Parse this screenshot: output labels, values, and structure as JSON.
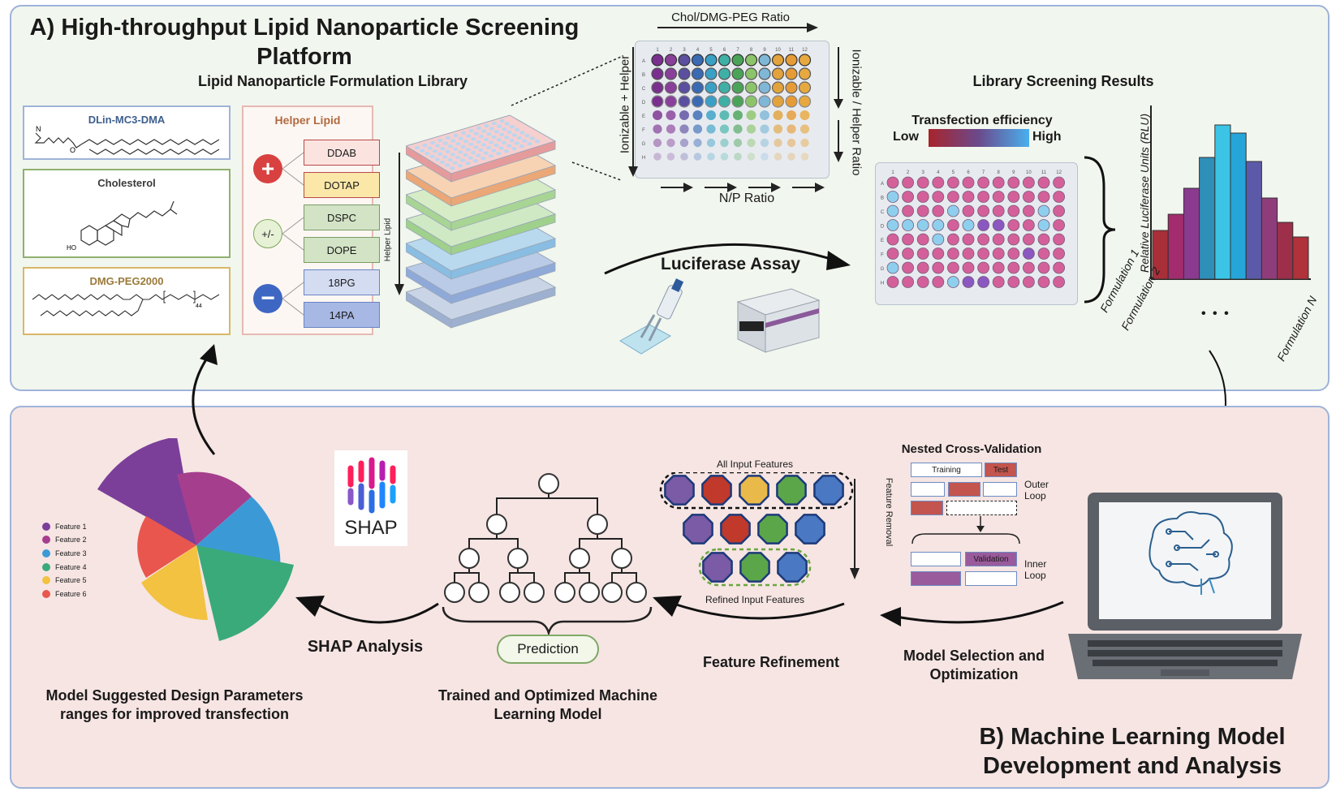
{
  "panel_a": {
    "title": "A) High-throughput Lipid Nanoparticle Screening Platform",
    "library_title": "Lipid Nanoparticle Formulation Library",
    "lipids": [
      {
        "name": "DLin-MC3-DMA",
        "color": "#3d5f8e"
      },
      {
        "name": "Cholesterol",
        "color": "#3b3b3b"
      },
      {
        "name": "DMG-PEG2000",
        "color": "#9a7a3a"
      }
    ],
    "peg_subscript": "44",
    "helper": {
      "title": "Helper Lipid",
      "groups": [
        {
          "sign": "+",
          "items": [
            "DDAB",
            "DOTAP"
          ]
        },
        {
          "sign": "+/-",
          "items": [
            "DSPC",
            "DOPE"
          ]
        },
        {
          "sign": "−",
          "items": [
            "18PG",
            "14PA"
          ]
        }
      ]
    },
    "helper_axis": "Helper Lipid",
    "plate_axes": {
      "top": "Chol/DMG-PEG Ratio",
      "left": "Ionizable + Helper",
      "right": "Ionizable / Helper Ratio",
      "bottom": "N/P Ratio"
    },
    "plate_rows": [
      "A",
      "B",
      "C",
      "D",
      "E",
      "F",
      "G",
      "H"
    ],
    "plate_cols": [
      "1",
      "2",
      "3",
      "4",
      "5",
      "6",
      "7",
      "8",
      "9",
      "10",
      "11",
      "12"
    ],
    "assay_label": "Luciferase Assay",
    "results_title": "Library Screening Results",
    "gradient": {
      "title": "Transfection efficiency",
      "low": "Low",
      "high": "High"
    },
    "bar_chart": {
      "ylabel": "Relative Luciferase Units (RLU)",
      "xlabels": [
        "Formulation 1",
        "Formulation 2",
        "Formulation N"
      ],
      "ellipsis": "• • •"
    }
  },
  "panel_b": {
    "title": "B) Machine Learning Model Development and Analysis",
    "cv_title": "Nested Cross-Validation",
    "training": "Training",
    "test": "Test",
    "outer_loop": "Outer Loop",
    "validation": "Validation",
    "inner_loop": "Inner Loop",
    "model_selection": "Model Selection and Optimization",
    "all_features": "All Input Features",
    "feature_removal": "Feature Removal",
    "refined_features": "Refined Input Features",
    "feature_refinement": "Feature Refinement",
    "prediction": "Prediction",
    "trained_model": "Trained and Optimized Machine Learning Model",
    "shap_logo": "SHAP",
    "shap_analysis": "SHAP Analysis",
    "model_suggested": "Model Suggested Design Parameters ranges for improved transfection",
    "features_legend": [
      {
        "label": "Feature 1",
        "color": "#7b3f9a"
      },
      {
        "label": "Feature 2",
        "color": "#a63e8e"
      },
      {
        "label": "Feature 3",
        "color": "#3b9ad6"
      },
      {
        "label": "Feature 4",
        "color": "#3aaa7a"
      },
      {
        "label": "Feature 5",
        "color": "#f2c240"
      },
      {
        "label": "Feature 6",
        "color": "#e8564e"
      }
    ]
  },
  "colors": {
    "panel_a_bg": "#f1f6ee",
    "panel_b_bg": "#f6e5e3",
    "panel_border": "#9fb3d9",
    "feature_purple": "#7b5aa6",
    "feature_red": "#c0392b",
    "feature_yellow": "#e9b949",
    "feature_green": "#5ca64a",
    "feature_blue": "#4a78c2",
    "bar_colors": [
      "#a82e38",
      "#a32c6e",
      "#8a3b8f",
      "#2e8fb8",
      "#3bc4e6",
      "#26a5d8",
      "#5c5aa8",
      "#8e3d7a",
      "#9e2f4a",
      "#b0323a"
    ]
  }
}
